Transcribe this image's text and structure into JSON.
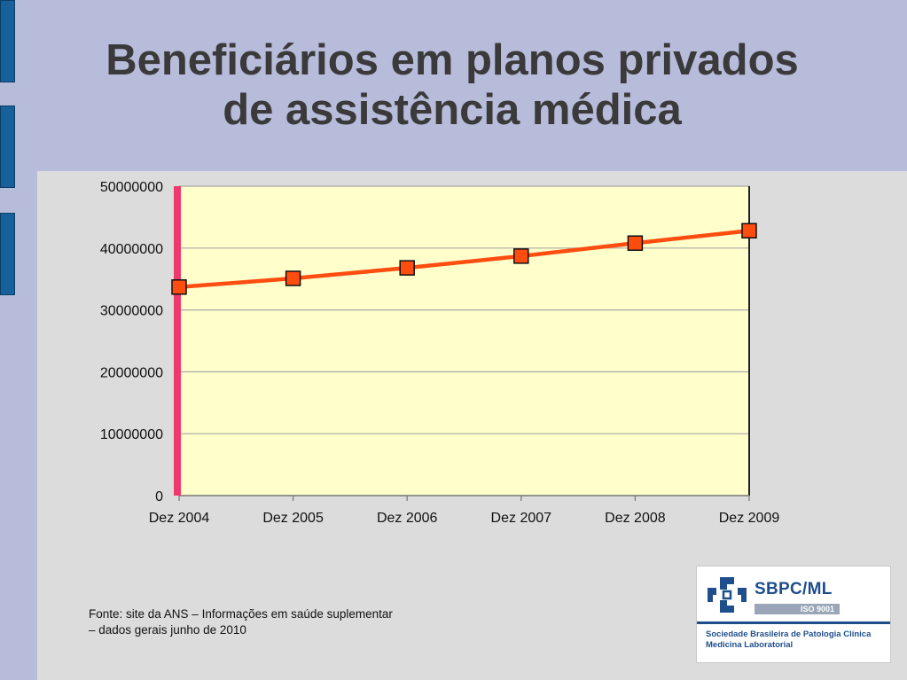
{
  "slide": {
    "title_line1": "Beneficiários em planos privados",
    "title_line2": "de assistência médica",
    "source_line1": "Fonte: site da ANS – Informações em saúde suplementar",
    "source_line2": "– dados gerais junho de 2010"
  },
  "logo": {
    "name": "SBPC/ML",
    "iso": "ISO 9001",
    "subtitle_line1": "Sociedade Brasileira de Patologia Clínica",
    "subtitle_line2": "Medicina Laboratorial"
  },
  "colors": {
    "background": "#b8bcdb",
    "plot_area": "#ffffcc",
    "line": "#ff4c0f",
    "marker": "#ff4c0f",
    "y_axis_accent": "#f0386e",
    "side_tabs": "#17609a"
  },
  "chart_data": {
    "type": "line",
    "categories": [
      "Dez 2004",
      "Dez 2005",
      "Dez 2006",
      "Dez 2007",
      "Dez 2008",
      "Dez 2009"
    ],
    "series": [
      {
        "values": [
          33700000,
          35100000,
          36800000,
          38700000,
          40800000,
          42800000
        ]
      }
    ],
    "ylim": [
      0,
      50000000
    ],
    "yticks": [
      "0",
      "10000000",
      "20000000",
      "30000000",
      "40000000",
      "50000000"
    ],
    "ytick_values": [
      0,
      10000000,
      20000000,
      30000000,
      40000000,
      50000000
    ],
    "grid": true,
    "legend": "none",
    "title": "",
    "xlabel": "",
    "ylabel": ""
  }
}
